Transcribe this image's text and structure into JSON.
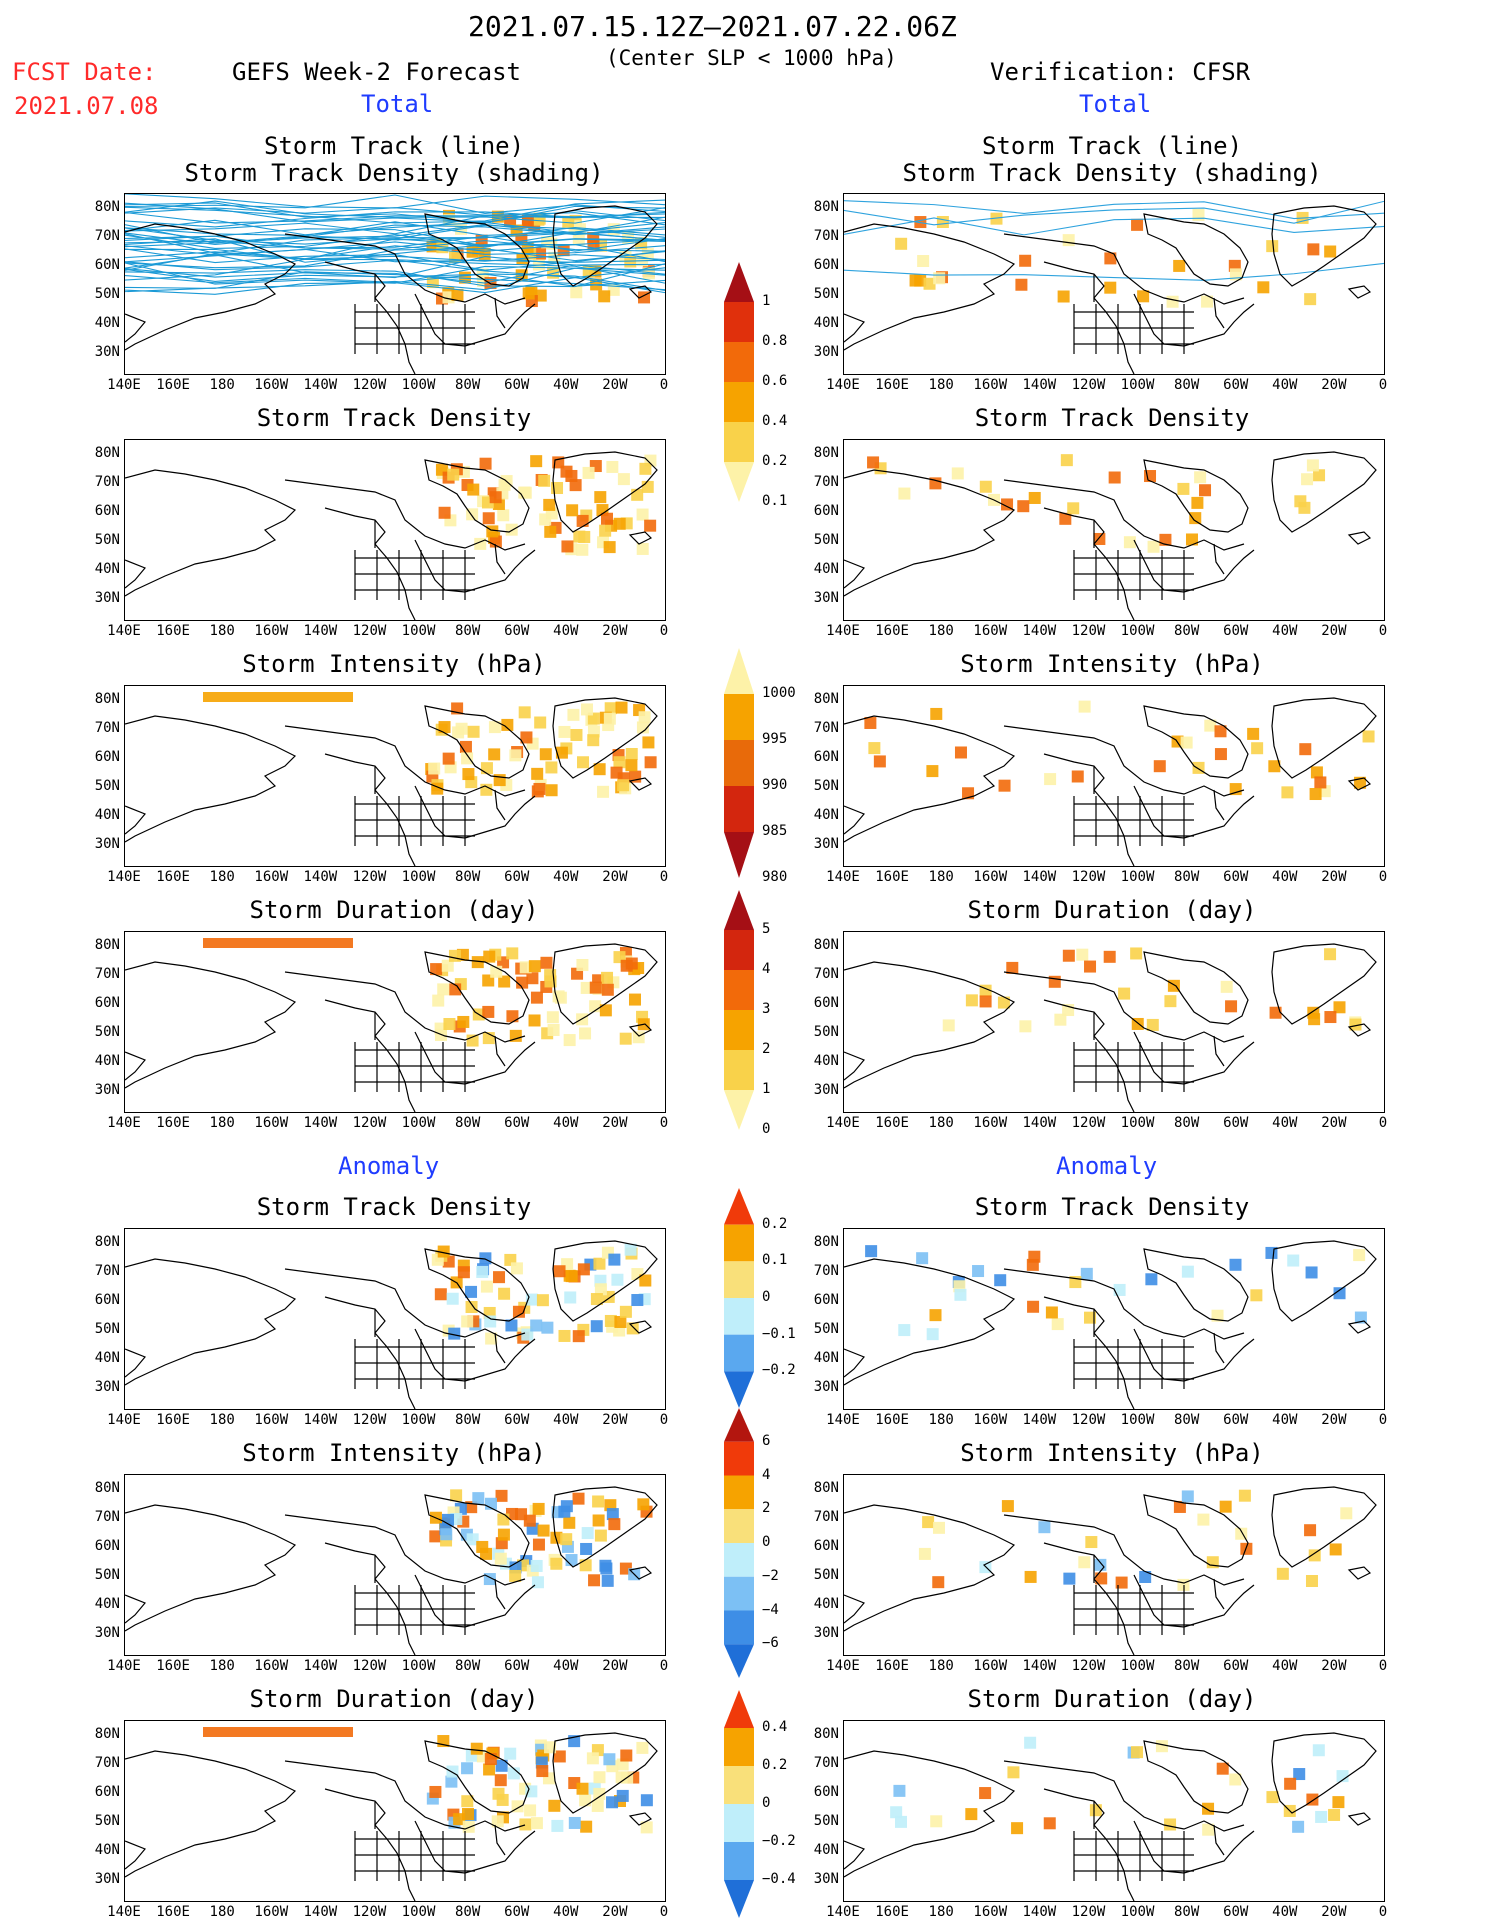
{
  "header": {
    "date_range": "2021.07.15.12Z–2021.07.22.06Z",
    "subtitle": "(Center SLP < 1000 hPa)",
    "fcst_label": "FCST Date:",
    "fcst_date": "2021.07.08",
    "left_title": "GEFS Week-2 Forecast",
    "right_title": "Verification: CFSR",
    "total_label": "Total",
    "anomaly_label": "Anomaly"
  },
  "panel_titles": {
    "track_line": "Storm Track (line)",
    "track_density_shading": "Storm Track Density (shading)",
    "track_density": "Storm Track Density",
    "intensity": "Storm Intensity (hPa)",
    "duration": "Storm Duration (day)"
  },
  "lat_labels": [
    "80N",
    "70N",
    "60N",
    "50N",
    "40N",
    "30N"
  ],
  "lon_labels": [
    "140E",
    "160E",
    "180",
    "160W",
    "140W",
    "120W",
    "100W",
    "80W",
    "60W",
    "40W",
    "20W",
    "0"
  ],
  "colorbars": {
    "density": {
      "labels": [
        "1",
        "0.8",
        "0.6",
        "0.4",
        "0.2",
        "0.1"
      ],
      "colors": [
        "#a50f15",
        "#e0300c",
        "#f26a0a",
        "#f6a300",
        "#f9d24a",
        "#fdf2a8"
      ]
    },
    "intensity": {
      "labels": [
        "1000",
        "995",
        "990",
        "985",
        "980"
      ],
      "colors": [
        "#fdf2a8",
        "#f6a300",
        "#e86a0a",
        "#d3260e",
        "#a50f15"
      ]
    },
    "duration": {
      "labels": [
        "5",
        "4",
        "3",
        "2",
        "1",
        "0"
      ],
      "colors": [
        "#a50f15",
        "#d3260e",
        "#f26a0a",
        "#f6a300",
        "#f9d24a",
        "#fdf2a8"
      ]
    },
    "anom_density": {
      "labels": [
        "0.2",
        "0.1",
        "0",
        "−0.1",
        "−0.2"
      ],
      "colors": [
        "#f03a0a",
        "#f6a300",
        "#f9e07a",
        "#bfeefa",
        "#5aa8ef",
        "#1f6fd8"
      ]
    },
    "anom_intensity": {
      "labels": [
        "6",
        "4",
        "2",
        "0",
        "−2",
        "−4",
        "−6"
      ],
      "colors": [
        "#b3160f",
        "#f03a0a",
        "#f6a300",
        "#f9e07a",
        "#bfeefa",
        "#7cc0f4",
        "#3e8ee6",
        "#1f6fd8"
      ]
    },
    "anom_duration": {
      "labels": [
        "0.4",
        "0.2",
        "0",
        "−0.2",
        "−0.4"
      ],
      "colors": [
        "#f03a0a",
        "#f6a300",
        "#f9e07a",
        "#bfeefa",
        "#5aa8ef",
        "#1f6fd8"
      ]
    }
  }
}
